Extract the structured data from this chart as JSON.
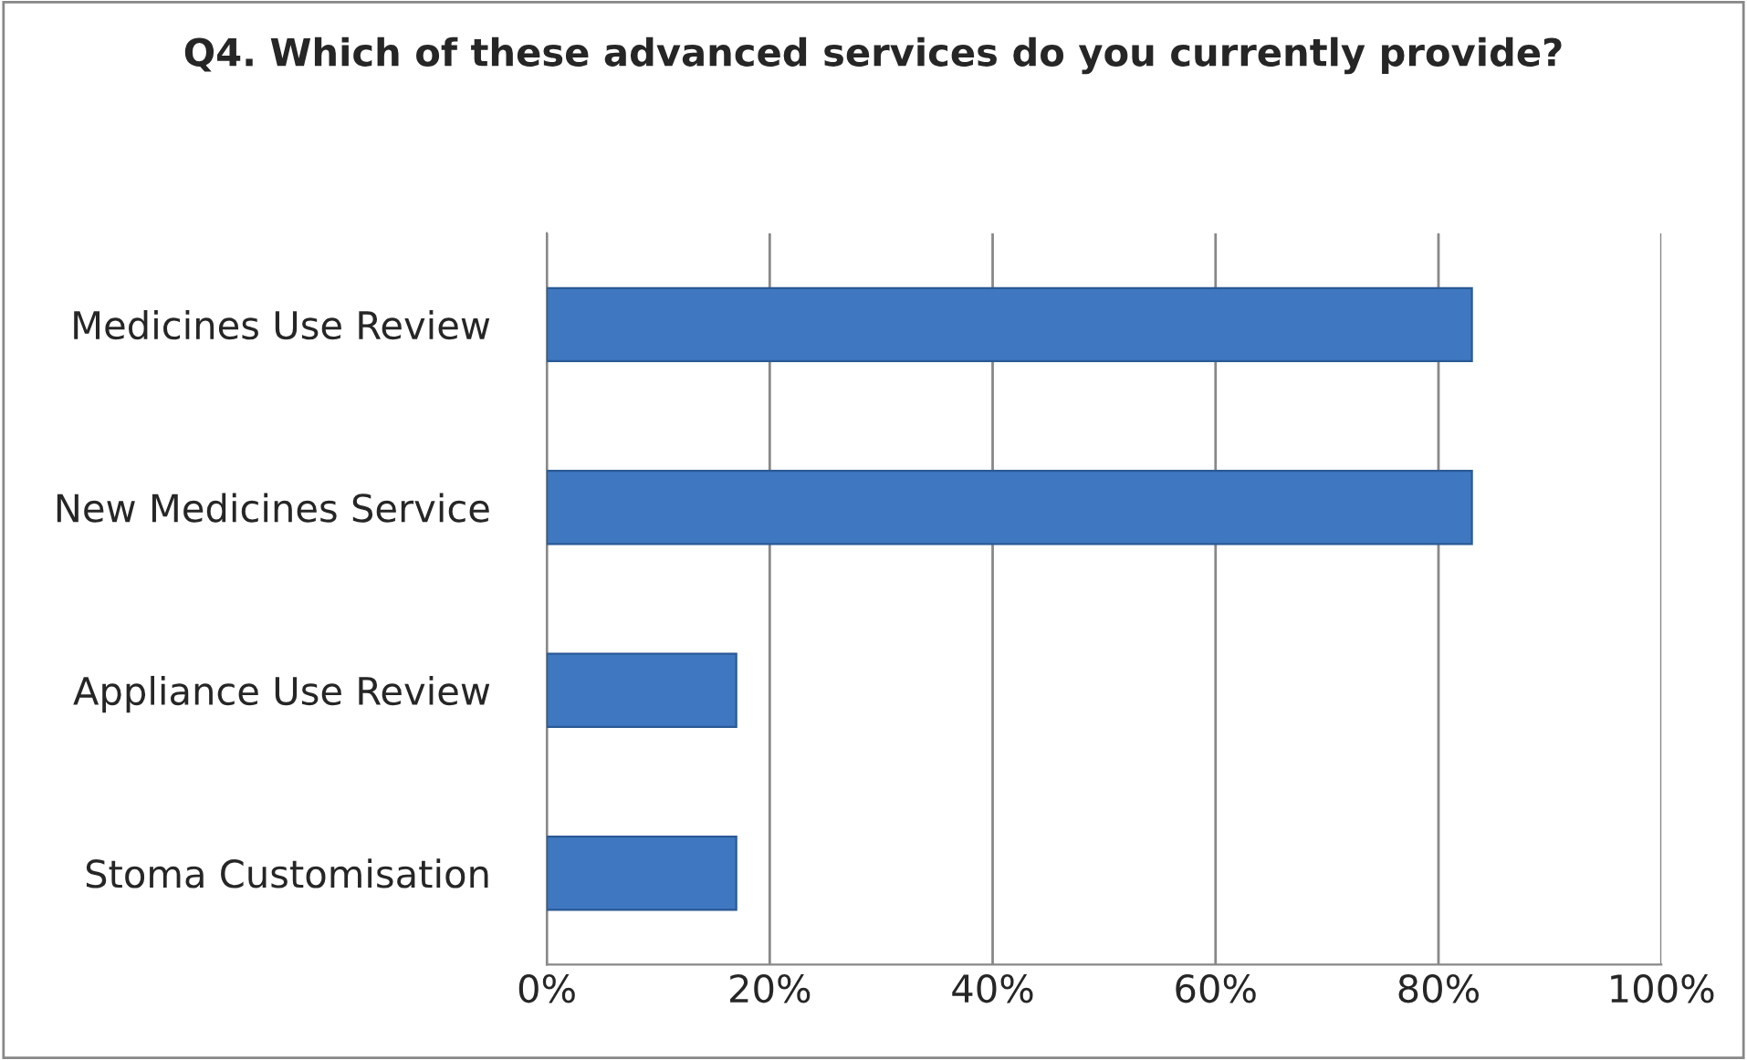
{
  "chart_data": {
    "type": "bar",
    "orientation": "horizontal",
    "title": "Q4. Which of these advanced services do you currently provide?",
    "categories": [
      "Medicines Use Review",
      "New Medicines Service",
      "Appliance Use Review",
      "Stoma Customisation"
    ],
    "values": [
      83,
      83,
      17,
      17
    ],
    "color": "#3f78c0",
    "xlim": [
      0,
      100
    ],
    "xticks": [
      {
        "value": 0,
        "label": "0%"
      },
      {
        "value": 20,
        "label": "20%"
      },
      {
        "value": 40,
        "label": "40%"
      },
      {
        "value": 60,
        "label": "60%"
      },
      {
        "value": 80,
        "label": "80%"
      },
      {
        "value": 100,
        "label": "100%"
      }
    ],
    "grid": "x"
  }
}
